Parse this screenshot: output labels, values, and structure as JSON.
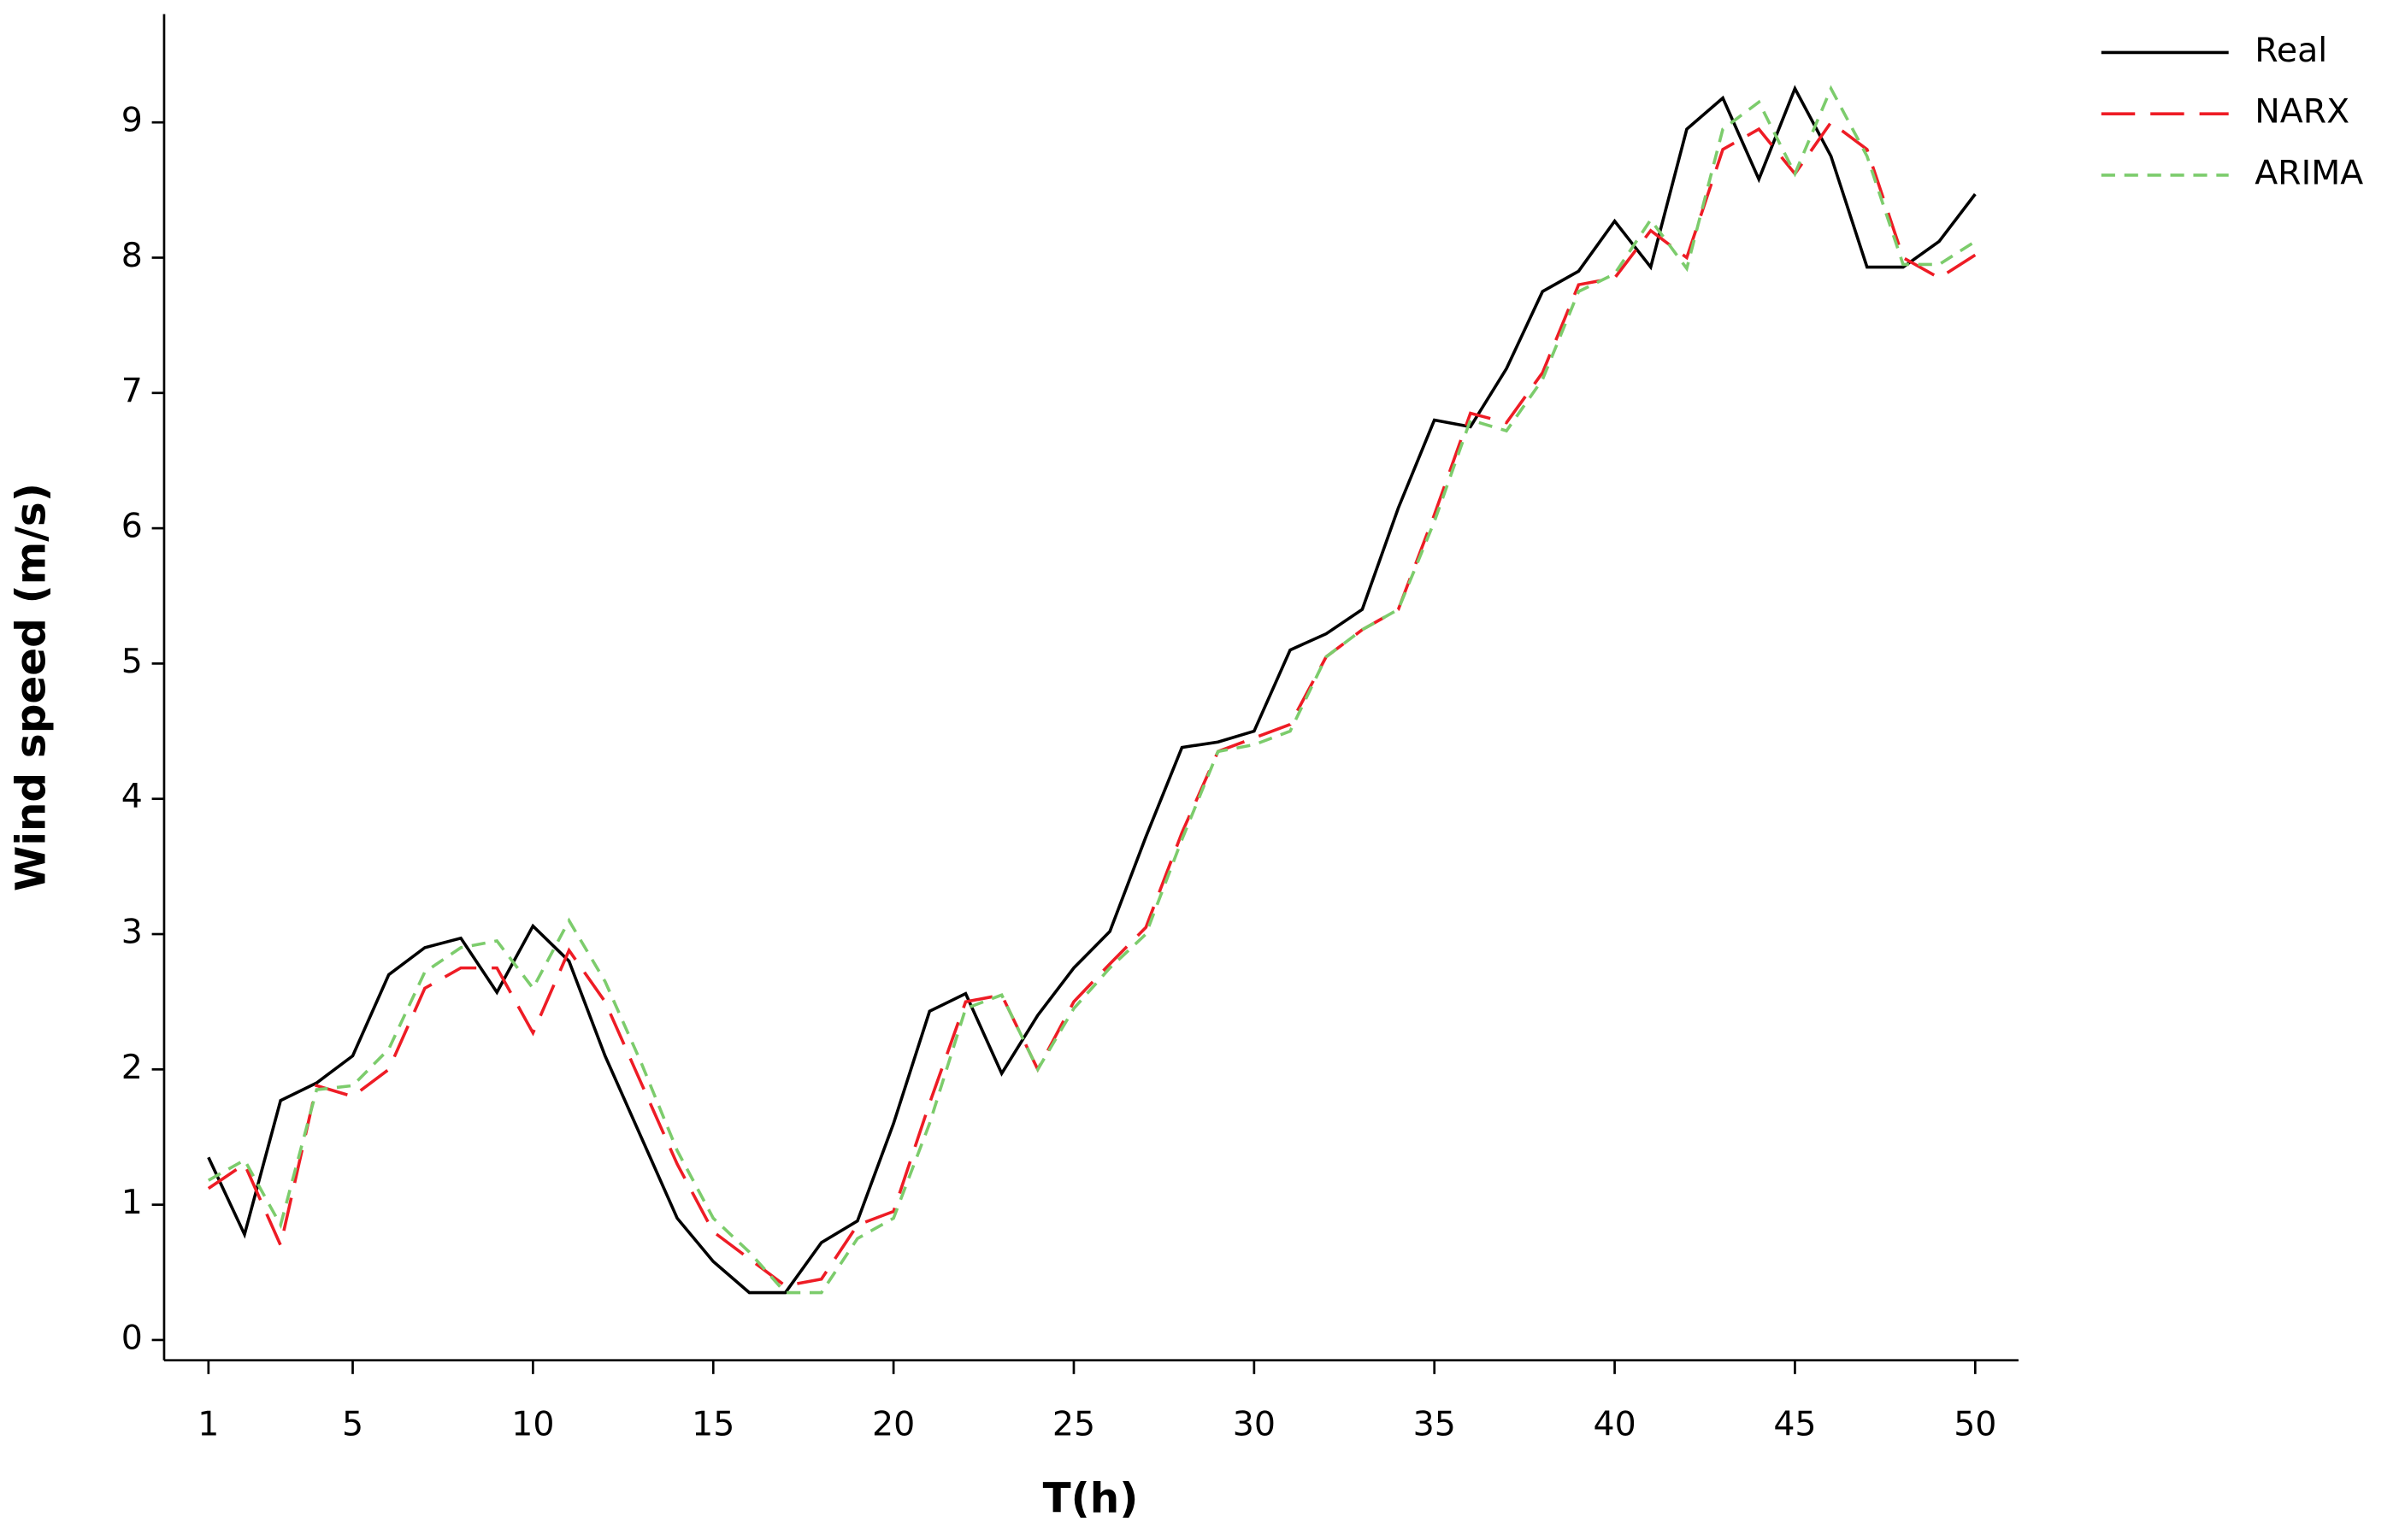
{
  "chart_data": {
    "type": "line",
    "x_label": "T(h)",
    "y_label": "Wind speed (m/s)",
    "x": [
      1,
      2,
      3,
      4,
      5,
      6,
      7,
      8,
      9,
      10,
      11,
      12,
      13,
      14,
      15,
      16,
      17,
      18,
      19,
      20,
      21,
      22,
      23,
      24,
      25,
      26,
      27,
      28,
      29,
      30,
      31,
      32,
      33,
      34,
      35,
      36,
      37,
      38,
      39,
      40,
      41,
      42,
      43,
      44,
      45,
      46,
      47,
      48,
      49,
      50
    ],
    "series": [
      {
        "name": "Real",
        "color": "#000000",
        "linestyle": "solid",
        "values": [
          1.35,
          0.78,
          1.77,
          1.9,
          2.1,
          2.7,
          2.9,
          2.97,
          2.57,
          3.06,
          2.8,
          2.1,
          1.5,
          0.9,
          0.58,
          0.35,
          0.35,
          0.72,
          0.88,
          1.6,
          2.43,
          2.56,
          1.97,
          2.4,
          2.75,
          3.02,
          3.72,
          4.38,
          4.42,
          4.5,
          5.1,
          5.22,
          5.4,
          6.15,
          6.8,
          6.75,
          7.18,
          7.75,
          7.9,
          8.27,
          7.93,
          8.95,
          9.18,
          8.58,
          9.25,
          8.75,
          7.93,
          7.93,
          8.12,
          8.47
        ]
      },
      {
        "name": "NARX",
        "color": "#ee1c25",
        "linestyle": "long-dash",
        "values": [
          1.12,
          1.3,
          0.7,
          1.88,
          1.8,
          2.0,
          2.6,
          2.75,
          2.75,
          2.27,
          2.88,
          2.5,
          1.9,
          1.3,
          0.8,
          0.6,
          0.4,
          0.45,
          0.85,
          0.95,
          1.75,
          2.5,
          2.55,
          2.0,
          2.5,
          2.78,
          3.05,
          3.75,
          4.35,
          4.45,
          4.55,
          5.05,
          5.25,
          5.4,
          6.1,
          6.85,
          6.78,
          7.15,
          7.8,
          7.85,
          8.2,
          8.0,
          8.8,
          8.95,
          8.62,
          9.0,
          8.8,
          8.0,
          7.85,
          8.02
        ]
      },
      {
        "name": "ARIMA",
        "color": "#7ccc6c",
        "linestyle": "short-dash",
        "values": [
          1.18,
          1.33,
          0.85,
          1.85,
          1.88,
          2.15,
          2.72,
          2.9,
          2.95,
          2.6,
          3.1,
          2.65,
          2.05,
          1.4,
          0.9,
          0.65,
          0.35,
          0.35,
          0.75,
          0.9,
          1.6,
          2.45,
          2.55,
          2.0,
          2.45,
          2.75,
          3.0,
          3.7,
          4.35,
          4.4,
          4.5,
          5.05,
          5.25,
          5.4,
          6.05,
          6.8,
          6.72,
          7.1,
          7.75,
          7.88,
          8.28,
          7.92,
          8.95,
          9.15,
          8.62,
          9.25,
          8.75,
          7.95,
          7.95,
          8.12
        ]
      }
    ],
    "xlim": [
      -0.23,
      51.2
    ],
    "xticks": [
      1,
      5,
      10,
      15,
      20,
      25,
      30,
      35,
      40,
      45,
      50
    ],
    "ylim": [
      -0.15,
      9.8
    ],
    "yticks": [
      0,
      1,
      2,
      3,
      4,
      5,
      6,
      7,
      8,
      9
    ],
    "grid": false,
    "legend": "top-right"
  }
}
